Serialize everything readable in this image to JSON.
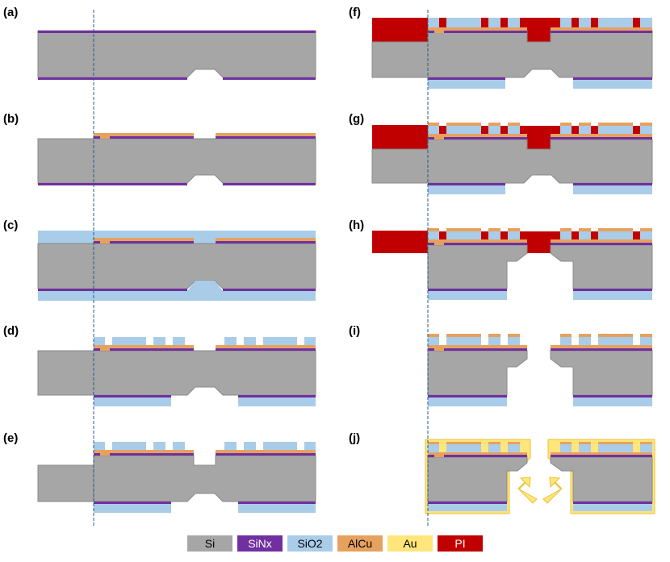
{
  "panels": [
    {
      "id": "a",
      "label": "(a)"
    },
    {
      "id": "b",
      "label": "(b)"
    },
    {
      "id": "c",
      "label": "(c)"
    },
    {
      "id": "d",
      "label": "(d)"
    },
    {
      "id": "e",
      "label": "(e)"
    },
    {
      "id": "f",
      "label": "(f)"
    },
    {
      "id": "g",
      "label": "(g)"
    },
    {
      "id": "h",
      "label": "(h)"
    },
    {
      "id": "i",
      "label": "(i)"
    },
    {
      "id": "j",
      "label": "(j)"
    }
  ],
  "legend": [
    {
      "label": "Si",
      "color": "#a6a6a6",
      "text_color": "#000000"
    },
    {
      "label": "SiNx",
      "color": "#7030a0",
      "text_color": "#ffffff"
    },
    {
      "label": "SiO2",
      "color": "#a9cce9",
      "text_color": "#000000"
    },
    {
      "label": "AlCu",
      "color": "#e7a15e",
      "text_color": "#000000"
    },
    {
      "label": "Au",
      "color": "#ffe57a",
      "text_color": "#000000"
    },
    {
      "label": "PI",
      "color": "#c00000",
      "text_color": "#ffffff"
    }
  ],
  "colors": {
    "si": "#a6a6a6",
    "sinx": "#7030a0",
    "sio2": "#a9cce9",
    "alcu": "#e7a15e",
    "au": "#ffe57a",
    "au_outline": "#e8c23a",
    "pi": "#c00000",
    "guide_line": "#1f5f8b"
  }
}
